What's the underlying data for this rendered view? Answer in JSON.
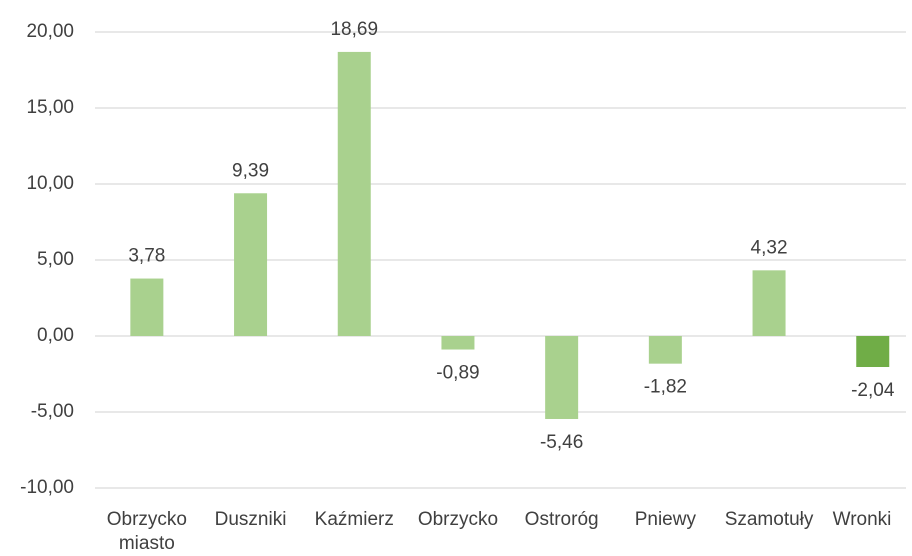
{
  "chart_data": {
    "type": "bar",
    "categories": [
      "Obrzycko miasto",
      "Duszniki",
      "Kaźmierz",
      "Obrzycko",
      "Ostroróg",
      "Pniewy",
      "Szamotuły",
      "Wronki"
    ],
    "values": [
      3.78,
      9.39,
      18.69,
      -0.89,
      -5.46,
      -1.82,
      4.32,
      -2.04
    ],
    "value_labels": [
      "3,78",
      "9,39",
      "18,69",
      "-0,89",
      "-5,46",
      "-1,82",
      "4,32",
      "-2,04"
    ],
    "colors": [
      "#a9d18e",
      "#a9d18e",
      "#a9d18e",
      "#a9d18e",
      "#a9d18e",
      "#a9d18e",
      "#a9d18e",
      "#70ad47"
    ],
    "ylim": [
      -10,
      20
    ],
    "yticks": [
      {
        "value": -10,
        "label": "-10,00"
      },
      {
        "value": -5,
        "label": "-5,00"
      },
      {
        "value": 0,
        "label": "0,00"
      },
      {
        "value": 5,
        "label": "5,00"
      },
      {
        "value": 10,
        "label": "10,00"
      },
      {
        "value": 15,
        "label": "15,00"
      },
      {
        "value": 20,
        "label": "20,00"
      }
    ],
    "grid": true
  }
}
